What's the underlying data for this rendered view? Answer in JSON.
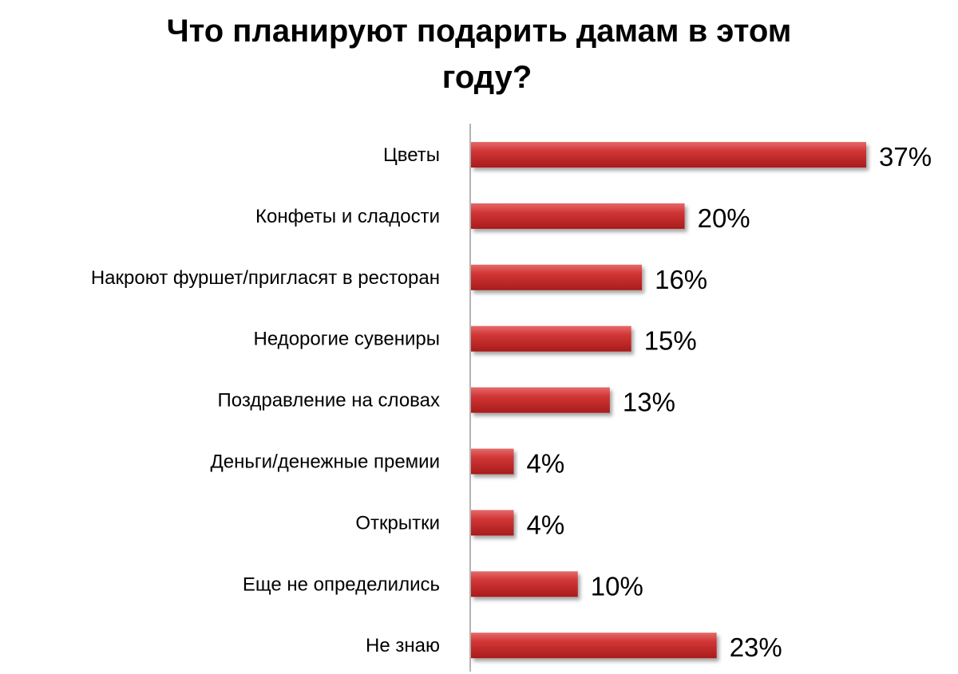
{
  "chart_data": {
    "type": "bar",
    "orientation": "horizontal",
    "title_lines": [
      "Что планируют подарить дамам в этом",
      "году?"
    ],
    "categories": [
      "Цветы",
      "Конфеты и сладости",
      "Накроют фуршет/пригласят в ресторан",
      "Недорогие сувениры",
      "Поздравление на словах",
      "Деньги/денежные премии",
      "Открытки",
      "Еще не определились",
      "Не знаю"
    ],
    "values": [
      37,
      20,
      16,
      15,
      13,
      4,
      4,
      10,
      23
    ],
    "value_labels": [
      "37%",
      "20%",
      "16%",
      "15%",
      "13%",
      "4%",
      "4%",
      "10%",
      "23%"
    ],
    "unit": "%",
    "xlim": [
      0,
      37
    ],
    "grid": false,
    "legend": "none",
    "bar_color": "#c62c2c"
  }
}
